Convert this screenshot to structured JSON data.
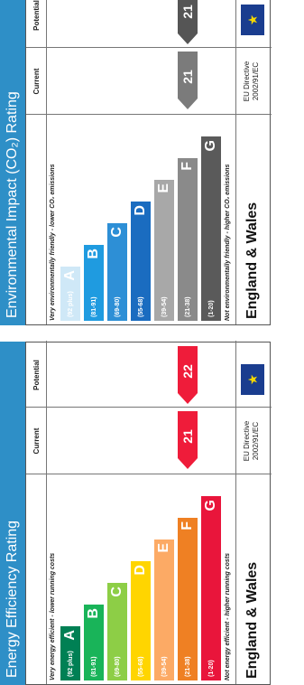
{
  "energy": {
    "title": "Energy Efficiency Rating",
    "col_current": "Current",
    "col_potential": "Potential",
    "top_note": "Very energy efficient - lower running costs",
    "bottom_note": "Not energy efficient - higher running costs",
    "bands": [
      {
        "range": "(92 plus)",
        "letter": "A",
        "color": "#008054"
      },
      {
        "range": "(81-91)",
        "letter": "B",
        "color": "#19b459"
      },
      {
        "range": "(69-80)",
        "letter": "C",
        "color": "#8dce46"
      },
      {
        "range": "(55-68)",
        "letter": "D",
        "color": "#ffd500"
      },
      {
        "range": "(39-54)",
        "letter": "E",
        "color": "#fcaa65"
      },
      {
        "range": "(21-38)",
        "letter": "F",
        "color": "#ef8023"
      },
      {
        "range": "(1-20)",
        "letter": "G",
        "color": "#e9153b"
      }
    ],
    "current": {
      "value": "21",
      "band_index": 5,
      "color": "#ef1c3a"
    },
    "potential": {
      "value": "22",
      "band_index": 5,
      "color": "#ef1c3a"
    },
    "region": "England & Wales",
    "directive": [
      "EU Directive",
      "2002/91/EC"
    ],
    "title_color": "#2e8fc7"
  },
  "environment": {
    "title": "Environmental Impact (CO₂) Rating",
    "col_current": "Current",
    "col_potential": "Potential",
    "top_note": "Very environmentally friendly - lower CO₂ emissions",
    "bottom_note": "Not environmentally friendly - higher CO₂ emissions",
    "bands": [
      {
        "range": "(92 plus)",
        "letter": "A",
        "color": "#cfe8f7"
      },
      {
        "range": "(81-91)",
        "letter": "B",
        "color": "#1f9be0"
      },
      {
        "range": "(69-80)",
        "letter": "C",
        "color": "#2d8fd6"
      },
      {
        "range": "(55-68)",
        "letter": "D",
        "color": "#1a6cc0"
      },
      {
        "range": "(39-54)",
        "letter": "E",
        "color": "#a8a8a8"
      },
      {
        "range": "(21-38)",
        "letter": "F",
        "color": "#8a8a8a"
      },
      {
        "range": "(1-20)",
        "letter": "G",
        "color": "#5a5a5a"
      }
    ],
    "current": {
      "value": "21",
      "band_index": 5,
      "color": "#7b7b7b"
    },
    "potential": {
      "value": "21",
      "band_index": 5,
      "color": "#555555"
    },
    "region": "England & Wales",
    "directive": [
      "EU Directive",
      "2002/91/EC"
    ],
    "title_color": "#2e8fc7"
  }
}
